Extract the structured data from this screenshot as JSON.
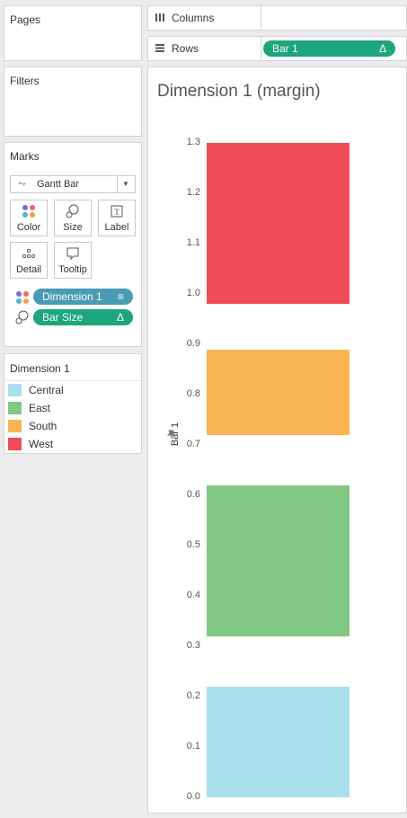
{
  "panels": {
    "pages": "Pages",
    "filters": "Filters",
    "marks": "Marks"
  },
  "shelves": {
    "columns": {
      "label": "Columns",
      "icon": "columns-icon"
    },
    "rows": {
      "label": "Rows",
      "icon": "rows-icon",
      "pill": "Bar 1",
      "pill_symbol": "Δ"
    }
  },
  "marks": {
    "mark_type": "Gantt Bar",
    "buttons": [
      "Color",
      "Size",
      "Label",
      "Detail",
      "Tooltip"
    ],
    "pills": [
      {
        "label": "Dimension 1",
        "symbol": "≡",
        "color": "#4a9bb5"
      },
      {
        "label": "Bar Size",
        "symbol": "Δ",
        "color": "#1ba67e"
      }
    ]
  },
  "legend": {
    "title": "Dimension 1",
    "items": [
      {
        "label": "Central",
        "color": "#a8e0ec"
      },
      {
        "label": "East",
        "color": "#81c784"
      },
      {
        "label": "South",
        "color": "#f8b551"
      },
      {
        "label": "West",
        "color": "#f04b56"
      }
    ]
  },
  "view": {
    "title": "Dimension 1 (margin)",
    "ylabel": "Bar 1",
    "ticks": [
      "1.3",
      "1.2",
      "1.1",
      "1.0",
      "0.9",
      "0.8",
      "0.7",
      "0.6",
      "0.5",
      "0.4",
      "0.3",
      "0.2",
      "0.1",
      "0.0"
    ]
  },
  "chart_data": {
    "type": "bar",
    "ylabel": "Bar 1",
    "ylim": [
      0,
      1.3
    ],
    "series": [
      {
        "name": "Central",
        "start": 0.0,
        "end": 0.22,
        "color": "#a8e0ec"
      },
      {
        "name": "East",
        "start": 0.32,
        "end": 0.62,
        "color": "#81c784"
      },
      {
        "name": "South",
        "start": 0.72,
        "end": 0.89,
        "color": "#f8b551"
      },
      {
        "name": "West",
        "start": 0.98,
        "end": 1.3,
        "color": "#f04b56"
      }
    ]
  }
}
